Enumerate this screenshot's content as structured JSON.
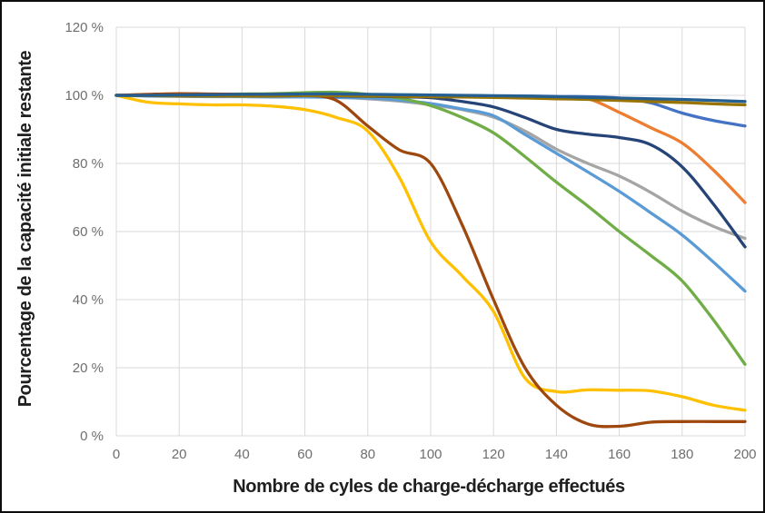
{
  "frame": {
    "background": "#ffffff",
    "border_color": "#0d0d0d"
  },
  "chart_data": {
    "type": "line",
    "title": "",
    "xlabel": "Nombre de cyles de charge-décharge effectués",
    "ylabel": "Pourcentage de la capacité initiale restante",
    "xlim": [
      0,
      200
    ],
    "ylim": [
      0,
      120
    ],
    "grid": true,
    "legend_position": "none",
    "grid_color": "#d9d9d9",
    "tick_label_color": "#6e6e6e",
    "axis_title_color": "#1f1f1f",
    "x_ticks": [
      {
        "value": 0,
        "label": "0"
      },
      {
        "value": 20,
        "label": "20"
      },
      {
        "value": 40,
        "label": "40"
      },
      {
        "value": 60,
        "label": "60"
      },
      {
        "value": 80,
        "label": "80"
      },
      {
        "value": 100,
        "label": "100"
      },
      {
        "value": 120,
        "label": "120"
      },
      {
        "value": 140,
        "label": "140"
      },
      {
        "value": 160,
        "label": "160"
      },
      {
        "value": 180,
        "label": "180"
      },
      {
        "value": 200,
        "label": "200"
      }
    ],
    "y_ticks": [
      {
        "value": 0,
        "label": "0 %"
      },
      {
        "value": 20,
        "label": "20 %"
      },
      {
        "value": 40,
        "label": "40 %"
      },
      {
        "value": 60,
        "label": "60 %"
      },
      {
        "value": 80,
        "label": "80 %"
      },
      {
        "value": 100,
        "label": "100 %"
      },
      {
        "value": 120,
        "label": "120 %"
      }
    ],
    "x": [
      0,
      10,
      20,
      30,
      40,
      50,
      60,
      70,
      80,
      90,
      100,
      110,
      120,
      130,
      140,
      150,
      160,
      170,
      180,
      190,
      200
    ],
    "series": [
      {
        "name": "ligne-bleue",
        "color": "#4472C4",
        "values": [
          100,
          100,
          100,
          100,
          100,
          100,
          100,
          100,
          100,
          100,
          99.9,
          99.9,
          99.8,
          99.8,
          99.7,
          99.6,
          99.2,
          97.8,
          94.8,
          92.6,
          91
        ]
      },
      {
        "name": "ligne-orange",
        "color": "#ED7D31",
        "values": [
          100,
          100,
          100,
          100,
          100,
          100,
          100,
          100,
          100,
          99.9,
          99.9,
          99.8,
          99.7,
          99.6,
          99.4,
          99,
          95,
          90.5,
          86,
          78,
          68.5
        ]
      },
      {
        "name": "ligne-grise",
        "color": "#A5A5A5",
        "values": [
          100,
          99.9,
          99.9,
          99.8,
          99.8,
          99.7,
          99.6,
          99.4,
          99,
          98.3,
          97.2,
          95.8,
          93.6,
          89.5,
          84.2,
          80,
          76.3,
          71.5,
          66,
          61.5,
          58
        ]
      },
      {
        "name": "ligne-jaune",
        "color": "#FFC000",
        "values": [
          100,
          98,
          97.5,
          97.2,
          97.2,
          96.8,
          95.8,
          93.5,
          89.5,
          76,
          57,
          47,
          36.5,
          17,
          13,
          13.5,
          13.4,
          13.2,
          11.5,
          9,
          7.5
        ]
      },
      {
        "name": "ligne-bleu-clair",
        "color": "#5B9BD5",
        "values": [
          100,
          99.8,
          99.7,
          99.6,
          99.6,
          99.5,
          99.5,
          99.4,
          99.2,
          98.6,
          97.6,
          96,
          94,
          88.5,
          83,
          77.5,
          71.8,
          65.5,
          59,
          51,
          42.5
        ]
      },
      {
        "name": "ligne-verte",
        "color": "#70AD47",
        "values": [
          100,
          100,
          100.2,
          100.3,
          100.4,
          100.5,
          100.8,
          100.9,
          100.3,
          99.2,
          97,
          93.5,
          89,
          82,
          74.5,
          67.5,
          60,
          53,
          45.5,
          34,
          21
        ]
      },
      {
        "name": "ligne-bleu-marine",
        "color": "#264478",
        "values": [
          100,
          100,
          100,
          100,
          100,
          100,
          99.9,
          99.8,
          99.7,
          99.6,
          99.3,
          98.2,
          96.6,
          93.5,
          90,
          88.6,
          87.6,
          85.5,
          79,
          68,
          55.5
        ]
      },
      {
        "name": "ligne-brune",
        "color": "#9E480E",
        "values": [
          100,
          100.3,
          100.5,
          100.4,
          100.3,
          100.3,
          100.1,
          98.5,
          91,
          84,
          80,
          62,
          40,
          20,
          9,
          3.5,
          2.8,
          4,
          4.2,
          4.2,
          4.2
        ]
      },
      {
        "name": "ligne-olive",
        "color": "#997300",
        "values": [
          100,
          99.9,
          99.8,
          99.8,
          99.8,
          99.8,
          99.9,
          99.9,
          99.8,
          99.7,
          99.6,
          99.5,
          99.4,
          99.2,
          99,
          98.8,
          98.5,
          98.2,
          97.9,
          97.5,
          97.2
        ]
      },
      {
        "name": "ligne-bleu-acier",
        "color": "#255E91",
        "values": [
          100,
          100,
          100.1,
          100.2,
          100.3,
          100.3,
          100.4,
          100.4,
          100.3,
          100.2,
          100.1,
          100,
          99.9,
          99.8,
          99.6,
          99.4,
          99.2,
          99,
          98.8,
          98.5,
          98.2
        ]
      }
    ]
  }
}
